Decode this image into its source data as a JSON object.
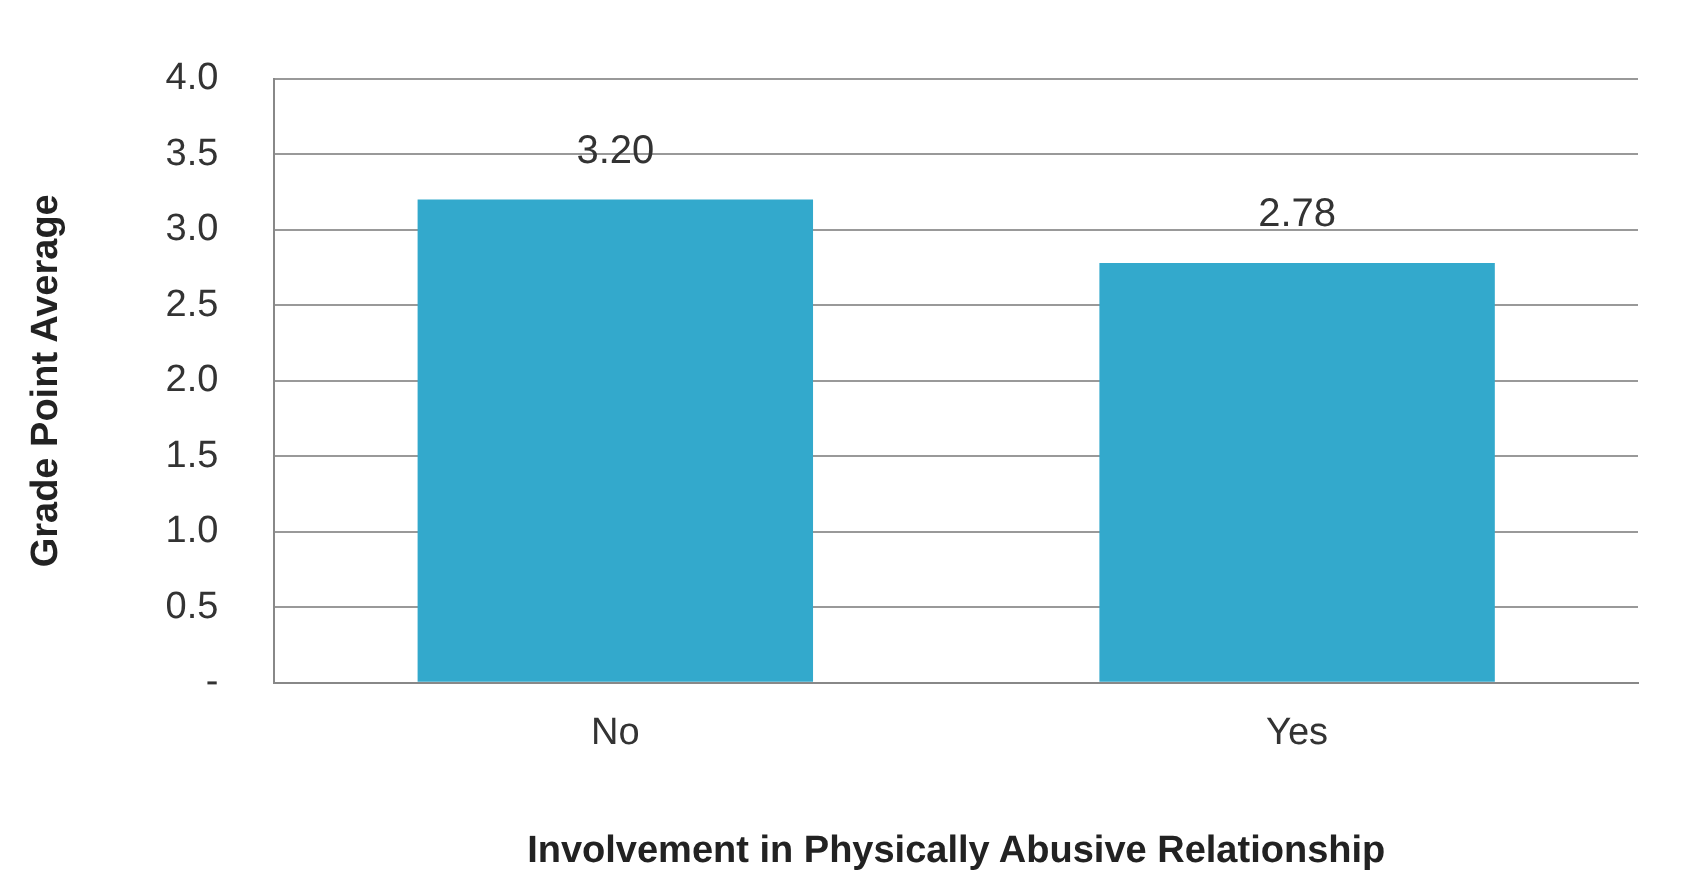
{
  "chart_data": {
    "type": "bar",
    "xlabel": "Involvement in Physically Abusive Relationship",
    "ylabel": "Grade Point Average",
    "categories": [
      "No",
      "Yes"
    ],
    "values": [
      3.2,
      2.78
    ],
    "value_labels": [
      "3.20",
      "2.78"
    ],
    "color": "#33a9cc",
    "ylim": [
      0,
      4
    ],
    "yticks": [
      {
        "value": 0,
        "label": "-"
      },
      {
        "value": 0.5,
        "label": "0.5"
      },
      {
        "value": 1,
        "label": "1.0"
      },
      {
        "value": 1.5,
        "label": "1.5"
      },
      {
        "value": 2,
        "label": "2.0"
      },
      {
        "value": 2.5,
        "label": "2.5"
      },
      {
        "value": 3,
        "label": "3.0"
      },
      {
        "value": 3.5,
        "label": "3.5"
      },
      {
        "value": 4,
        "label": "4.0"
      }
    ],
    "grid": "y",
    "legend": false
  }
}
